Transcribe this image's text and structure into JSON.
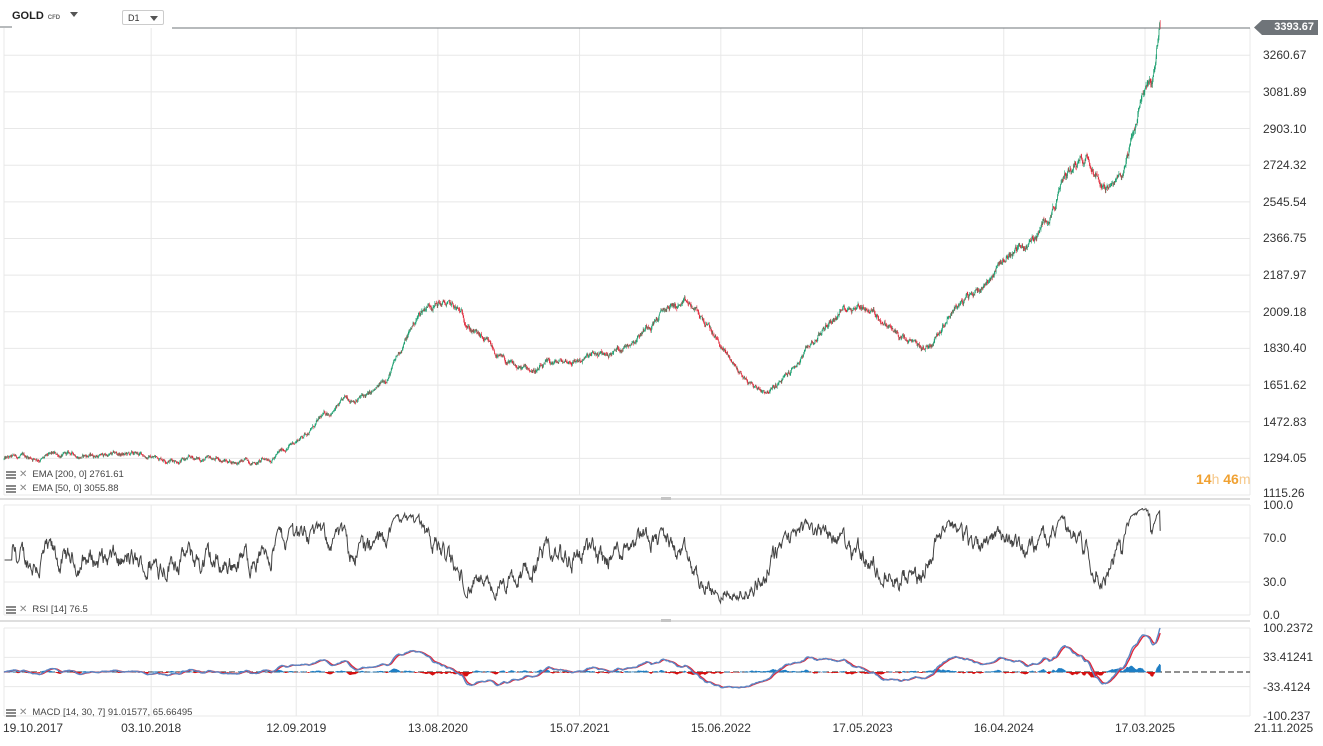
{
  "toolbar": {
    "symbol": "GOLD",
    "symbol_type": "CFD",
    "timeframe": "D1"
  },
  "last_price": "3393.67",
  "countdown": {
    "hours": "14",
    "h": "h",
    "minutes": "46",
    "m": "m"
  },
  "colors": {
    "up": "#1a9e6e",
    "down": "#e0283a",
    "rsi_line": "#444444",
    "macd_line": "#5b86c4",
    "signal_line": "#e0283a",
    "hist_up": "#1f7fc4",
    "hist_down": "#d41010",
    "grid": "#e8e8e8"
  },
  "legends": {
    "ema200": "EMA [200, 0] 2761.61",
    "ema50": "EMA [50, 0] 3055.88",
    "rsi": "RSI [14] 76.5",
    "macd": "MACD [14, 30, 7] 91.01577, 65.66495"
  },
  "chart_data": [
    {
      "type": "candlestick",
      "title": "",
      "series": [
        {
          "name": "GOLD"
        }
      ],
      "x_dates": [
        "2017-10-19",
        "2018-06-01",
        "2019-06-01",
        "2020-03-01",
        "2020-08-06",
        "2021-03-01",
        "2021-09-01",
        "2022-03-08",
        "2022-09-26",
        "2023-05-04",
        "2023-10-06",
        "2024-01-01",
        "2024-06-01",
        "2024-10-30",
        "2025-01-01",
        "2025-04-03",
        "2025-04-22"
      ],
      "close_values": [
        1290,
        1310,
        1280,
        1600,
        2060,
        1720,
        1790,
        2040,
        1630,
        2050,
        1820,
        2060,
        2330,
        2780,
        2620,
        3130,
        3393.67
      ],
      "xtick_labels": [
        "19.10.2017",
        "03.10.2018",
        "12.09.2019",
        "13.08.2020",
        "15.07.2021",
        "15.06.2022",
        "17.05.2023",
        "16.04.2024",
        "17.03.2025",
        "21.11.2025"
      ],
      "ytick_labels": [
        "3260.67",
        "3081.89",
        "2903.10",
        "2724.32",
        "2545.54",
        "2366.75",
        "2187.97",
        "2009.18",
        "1830.40",
        "1651.62",
        "1472.83",
        "1294.05",
        "1115.26"
      ],
      "ylim": [
        1115.26,
        3393.67
      ],
      "grid": true
    },
    {
      "type": "line",
      "title": "",
      "series": [
        {
          "name": "RSI"
        }
      ],
      "ytick_labels": [
        "100.0",
        "70.0",
        "30.0",
        "0.0"
      ],
      "ylim": [
        0,
        100
      ],
      "latest": 76.5
    },
    {
      "type": "line",
      "title": "",
      "series": [
        {
          "name": "MACD"
        }
      ],
      "ytick_labels": [
        "100.2372",
        "33.41241",
        "-33.4124",
        "-100.237"
      ],
      "ylim": [
        -100.237,
        100.2372
      ],
      "latest_macd": 91.01577,
      "latest_signal": 65.66495
    }
  ]
}
